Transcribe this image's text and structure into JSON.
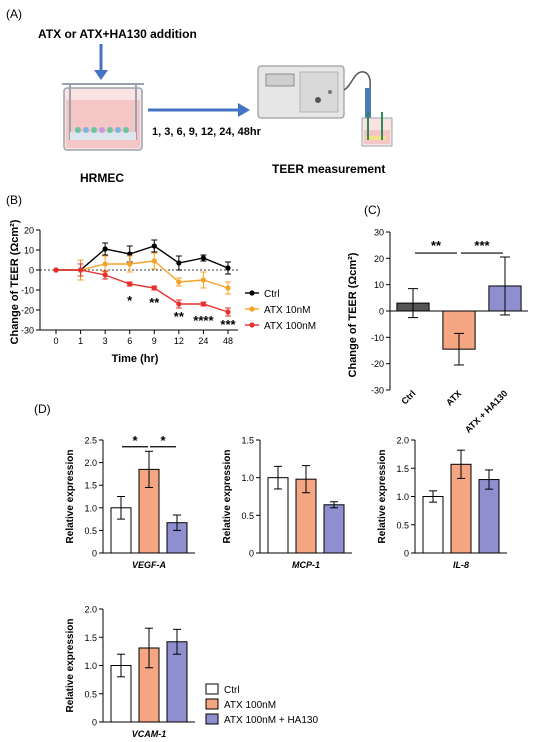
{
  "panel_a": {
    "label": "(A)",
    "addition_text": "ATX or ATX+HA130 addition",
    "cell_label": "HRMEC",
    "timepoints_text": "1, 3, 6, 9, 12, 24, 48hr",
    "measure_label": "TEER measurement",
    "colors": {
      "arrow": "#4472c4",
      "medium": "#f4c6c6",
      "device": "#e6e6e6"
    }
  },
  "chart_data": [
    {
      "panel": "(B)",
      "type": "line",
      "xlabel": "Time (hr)",
      "ylabel": "Change of TEER (Ωcm²)",
      "categories": [
        "0",
        "1",
        "3",
        "6",
        "9",
        "12",
        "24",
        "48"
      ],
      "ylim": [
        -30,
        20
      ],
      "yticks": [
        -30,
        -20,
        -10,
        0,
        10,
        20
      ],
      "reference_line": 0,
      "legend_position": "right",
      "series": [
        {
          "name": "Ctrl",
          "color": "#000000",
          "values": [
            0,
            0,
            10.5,
            8,
            12,
            3.5,
            6,
            1
          ],
          "errors": [
            0,
            5,
            3,
            4,
            3,
            3.5,
            1.5,
            3
          ]
        },
        {
          "name": "ATX 10nM",
          "color": "#f5a327",
          "values": [
            0,
            0,
            3,
            3,
            4.5,
            -6,
            -5,
            -9
          ],
          "errors": [
            0,
            5,
            4,
            4,
            4,
            2,
            4,
            3
          ]
        },
        {
          "name": "ATX 100nM",
          "color": "#e8312f",
          "values": [
            0,
            0,
            -2.5,
            -7,
            -9,
            -17,
            -17,
            -21
          ],
          "errors": [
            0,
            3,
            2,
            1,
            1,
            2,
            1,
            2
          ]
        }
      ],
      "annotations": [
        {
          "category": "6",
          "value": -15,
          "text": "*"
        },
        {
          "category": "9",
          "value": -16,
          "text": "**"
        },
        {
          "category": "12",
          "value": -23,
          "text": "**"
        },
        {
          "category": "24",
          "value": -25,
          "text": "****"
        },
        {
          "category": "48",
          "value": -27,
          "text": "***"
        }
      ]
    },
    {
      "panel": "(C)",
      "type": "bar",
      "ylabel": "Change of TEER (Ωcm²)",
      "categories": [
        "Ctrl",
        "ATX",
        "ATX + HA130"
      ],
      "values": [
        3,
        -14.5,
        9.5
      ],
      "errors": [
        5.5,
        6,
        11
      ],
      "colors": [
        "#555555",
        "#f4a582",
        "#8f8fcf"
      ],
      "ylim": [
        -30,
        30
      ],
      "yticks": [
        -30,
        -20,
        -10,
        0,
        10,
        20,
        30
      ],
      "significance": [
        {
          "from": 0,
          "to": 1,
          "text": "**",
          "value": 22
        },
        {
          "from": 1,
          "to": 2,
          "text": "***",
          "value": 22
        }
      ]
    },
    {
      "panel": "(D)",
      "type": "bar",
      "xlabel": "VEGF-A",
      "ylabel": "Relative expression",
      "categories": [
        "Ctrl",
        "ATX 100nM",
        "ATX 100nM + HA130"
      ],
      "values": [
        1.0,
        1.85,
        0.67
      ],
      "errors": [
        0.25,
        0.4,
        0.17
      ],
      "ylim": [
        0,
        2.5
      ],
      "yticks": [
        "0",
        "0.5",
        "1.0",
        "1.5",
        "2.0",
        "2.5"
      ],
      "significance": [
        {
          "from": 0,
          "to": 1,
          "text": "*",
          "value": 2.35
        },
        {
          "from": 1,
          "to": 2,
          "text": "*",
          "value": 2.35
        }
      ]
    },
    {
      "panel": "(D)",
      "type": "bar",
      "xlabel": "MCP-1",
      "ylabel": "Relative expression",
      "categories": [
        "Ctrl",
        "ATX 100nM",
        "ATX 100nM + HA130"
      ],
      "values": [
        1.0,
        0.98,
        0.64
      ],
      "errors": [
        0.15,
        0.18,
        0.04
      ],
      "ylim": [
        0,
        1.5
      ],
      "yticks": [
        "0",
        "0.5",
        "1.0",
        "1.5"
      ]
    },
    {
      "panel": "(D)",
      "type": "bar",
      "xlabel": "IL-8",
      "ylabel": "Relative expression",
      "categories": [
        "Ctrl",
        "ATX 100nM",
        "ATX 100nM + HA130"
      ],
      "values": [
        1.0,
        1.57,
        1.3
      ],
      "errors": [
        0.1,
        0.25,
        0.17
      ],
      "ylim": [
        0,
        2.0
      ],
      "yticks": [
        "0",
        "0.5",
        "1.0",
        "1.5",
        "2.0"
      ]
    },
    {
      "panel": "(D)",
      "type": "bar",
      "xlabel": "VCAM-1",
      "ylabel": "Relative expression",
      "categories": [
        "Ctrl",
        "ATX 100nM",
        "ATX 100nM + HA130"
      ],
      "values": [
        1.0,
        1.31,
        1.42
      ],
      "errors": [
        0.2,
        0.35,
        0.22
      ],
      "ylim": [
        0,
        2.0
      ],
      "yticks": [
        "0",
        "0.5",
        "1.0",
        "1.5",
        "2.0"
      ]
    }
  ],
  "panel_d_legend": {
    "items": [
      {
        "label": "Ctrl",
        "color": "#ffffff"
      },
      {
        "label": "ATX 100nM",
        "color": "#f4a582"
      },
      {
        "label": "ATX 100nM + HA130",
        "color": "#8f8fcf"
      }
    ]
  }
}
